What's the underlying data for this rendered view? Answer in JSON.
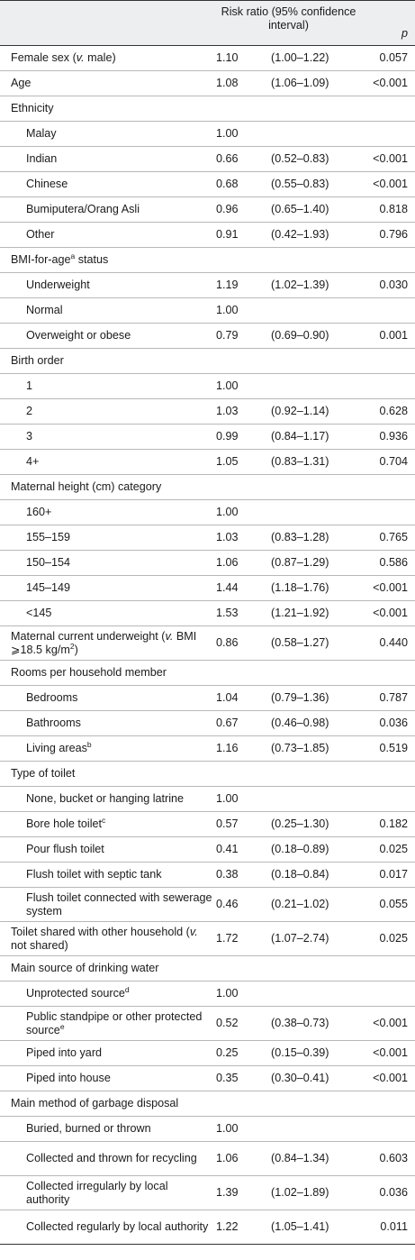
{
  "header": {
    "risk_ratio": "Risk ratio (95% confidence interval)",
    "p": "p"
  },
  "rows": [
    {
      "label": "Female sex (v. male)",
      "indent": 0,
      "lines": 1,
      "rr": "1.10",
      "ci": "(1.00–1.22)",
      "p": "0.057"
    },
    {
      "label": "Age",
      "indent": 0,
      "lines": 1,
      "rr": "1.08",
      "ci": "(1.06–1.09)",
      "p": "<0.001"
    },
    {
      "label": "Ethnicity",
      "indent": 0,
      "lines": 1,
      "rr": "",
      "ci": "",
      "p": ""
    },
    {
      "label": "Malay",
      "indent": 1,
      "lines": 1,
      "rr": "1.00",
      "ci": "",
      "p": ""
    },
    {
      "label": "Indian",
      "indent": 1,
      "lines": 1,
      "rr": "0.66",
      "ci": "(0.52–0.83)",
      "p": "<0.001"
    },
    {
      "label": "Chinese",
      "indent": 1,
      "lines": 1,
      "rr": "0.68",
      "ci": "(0.55–0.83)",
      "p": "<0.001"
    },
    {
      "label": "Bumiputera/Orang Asli",
      "indent": 1,
      "lines": 1,
      "rr": "0.96",
      "ci": "(0.65–1.40)",
      "p": "0.818"
    },
    {
      "label": "Other",
      "indent": 1,
      "lines": 1,
      "rr": "0.91",
      "ci": "(0.42–1.93)",
      "p": "0.796"
    },
    {
      "label": "BMI-for-age",
      "sup": "a",
      "label_after": " status",
      "indent": 0,
      "lines": 1,
      "rr": "",
      "ci": "",
      "p": ""
    },
    {
      "label": "Underweight",
      "indent": 1,
      "lines": 1,
      "rr": "1.19",
      "ci": "(1.02–1.39)",
      "p": "0.030"
    },
    {
      "label": "Normal",
      "indent": 1,
      "lines": 1,
      "rr": "1.00",
      "ci": "",
      "p": ""
    },
    {
      "label": "Overweight or obese",
      "indent": 1,
      "lines": 1,
      "rr": "0.79",
      "ci": "(0.69–0.90)",
      "p": "0.001"
    },
    {
      "label": "Birth order",
      "indent": 0,
      "lines": 1,
      "rr": "",
      "ci": "",
      "p": ""
    },
    {
      "label": "1",
      "indent": 1,
      "lines": 1,
      "rr": "1.00",
      "ci": "",
      "p": ""
    },
    {
      "label": "2",
      "indent": 1,
      "lines": 1,
      "rr": "1.03",
      "ci": "(0.92–1.14)",
      "p": "0.628"
    },
    {
      "label": "3",
      "indent": 1,
      "lines": 1,
      "rr": "0.99",
      "ci": "(0.84–1.17)",
      "p": "0.936"
    },
    {
      "label": "4+",
      "indent": 1,
      "lines": 1,
      "rr": "1.05",
      "ci": "(0.83–1.31)",
      "p": "0.704"
    },
    {
      "label": "Maternal height (cm) category",
      "indent": 0,
      "lines": 1,
      "rr": "",
      "ci": "",
      "p": ""
    },
    {
      "label": "160+",
      "indent": 1,
      "lines": 1,
      "rr": "1.00",
      "ci": "",
      "p": ""
    },
    {
      "label": "155–159",
      "indent": 1,
      "lines": 1,
      "rr": "1.03",
      "ci": "(0.83–1.28)",
      "p": "0.765"
    },
    {
      "label": "150–154",
      "indent": 1,
      "lines": 1,
      "rr": "1.06",
      "ci": "(0.87–1.29)",
      "p": "0.586"
    },
    {
      "label": "145–149",
      "indent": 1,
      "lines": 1,
      "rr": "1.44",
      "ci": "(1.18–1.76)",
      "p": "<0.001"
    },
    {
      "label": "<145",
      "indent": 1,
      "lines": 1,
      "rr": "1.53",
      "ci": "(1.21–1.92)",
      "p": "<0.001"
    },
    {
      "label": "Maternal current underweight (v. BMI ⩾18.5 kg/m",
      "sup": "2",
      "label_after": ")",
      "indent": 0,
      "lines": 2,
      "rr": "0.86",
      "ci": "(0.58–1.27)",
      "p": "0.440"
    },
    {
      "label": "Rooms per household member",
      "indent": 0,
      "lines": 1,
      "rr": "",
      "ci": "",
      "p": ""
    },
    {
      "label": "Bedrooms",
      "indent": 1,
      "lines": 1,
      "rr": "1.04",
      "ci": "(0.79–1.36)",
      "p": "0.787"
    },
    {
      "label": "Bathrooms",
      "indent": 1,
      "lines": 1,
      "rr": "0.67",
      "ci": "(0.46–0.98)",
      "p": "0.036"
    },
    {
      "label": "Living areas",
      "sup": "b",
      "indent": 1,
      "lines": 1,
      "rr": "1.16",
      "ci": "(0.73–1.85)",
      "p": "0.519"
    },
    {
      "label": "Type of toilet",
      "indent": 0,
      "lines": 1,
      "rr": "",
      "ci": "",
      "p": ""
    },
    {
      "label": "None, bucket or hanging latrine",
      "indent": 1,
      "lines": 1,
      "rr": "1.00",
      "ci": "",
      "p": ""
    },
    {
      "label": "Bore hole toilet",
      "sup": "c",
      "indent": 1,
      "lines": 1,
      "rr": "0.57",
      "ci": "(0.25–1.30)",
      "p": "0.182"
    },
    {
      "label": "Pour flush toilet",
      "indent": 1,
      "lines": 1,
      "rr": "0.41",
      "ci": "(0.18–0.89)",
      "p": "0.025"
    },
    {
      "label": "Flush toilet with septic tank",
      "indent": 1,
      "lines": 1,
      "rr": "0.38",
      "ci": "(0.18–0.84)",
      "p": "0.017"
    },
    {
      "label": "Flush toilet connected with sewerage system",
      "indent": 1,
      "lines": 2,
      "rr": "0.46",
      "ci": "(0.21–1.02)",
      "p": "0.055"
    },
    {
      "label": "Toilet shared with other household (v. not shared)",
      "indent": 0,
      "lines": 2,
      "rr": "1.72",
      "ci": "(1.07–2.74)",
      "p": "0.025"
    },
    {
      "label": "Main source of drinking water",
      "indent": 0,
      "lines": 1,
      "rr": "",
      "ci": "",
      "p": ""
    },
    {
      "label": "Unprotected source",
      "sup": "d",
      "indent": 1,
      "lines": 1,
      "rr": "1.00",
      "ci": "",
      "p": ""
    },
    {
      "label": "Public standpipe or other protected source",
      "sup": "e",
      "indent": 1,
      "lines": 2,
      "rr": "0.52",
      "ci": "(0.38–0.73)",
      "p": "<0.001"
    },
    {
      "label": "Piped into yard",
      "indent": 1,
      "lines": 1,
      "rr": "0.25",
      "ci": "(0.15–0.39)",
      "p": "<0.001"
    },
    {
      "label": "Piped into house",
      "indent": 1,
      "lines": 1,
      "rr": "0.35",
      "ci": "(0.30–0.41)",
      "p": "<0.001"
    },
    {
      "label": "Main method of garbage disposal",
      "indent": 0,
      "lines": 1,
      "rr": "",
      "ci": "",
      "p": ""
    },
    {
      "label": "Buried, burned or thrown",
      "indent": 1,
      "lines": 1,
      "rr": "1.00",
      "ci": "",
      "p": ""
    },
    {
      "label": "Collected and thrown for recycling",
      "indent": 1,
      "lines": 2,
      "rr": "1.06",
      "ci": "(0.84–1.34)",
      "p": "0.603"
    },
    {
      "label": "Collected irregularly by local authority",
      "indent": 1,
      "lines": 2,
      "rr": "1.39",
      "ci": "(1.02–1.89)",
      "p": "0.036"
    },
    {
      "label": "Collected regularly by local authority",
      "indent": 1,
      "lines": 2,
      "rr": "1.22",
      "ci": "(1.05–1.41)",
      "p": "0.011"
    }
  ]
}
